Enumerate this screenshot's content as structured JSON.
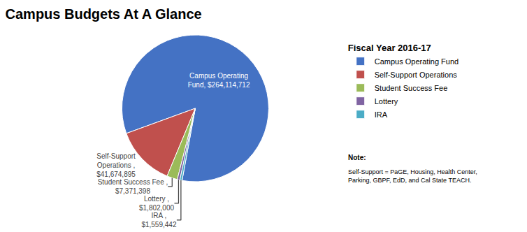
{
  "chart_data": {
    "type": "pie",
    "title": "Campus Budgets At A Glance",
    "categories": [
      "Campus Operating Fund",
      "Self-Support Operations",
      "Student Success Fee",
      "Lottery",
      "IRA"
    ],
    "values": [
      264114712,
      41674895,
      7371398,
      1802000,
      1559442
    ],
    "colors": [
      "#4472C4",
      "#C0504D",
      "#9BBB59",
      "#8064A2",
      "#4BACC6"
    ],
    "data_labels": true,
    "value_labels": [
      "Campus Operating\nFund, $264,114,712",
      "Self-Support\nOperations ,\n$41,674,895",
      "Student Success Fee ,\n$7,371,398",
      "Lottery ,\n$1,802,000",
      "IRA ,\n$1,559,442"
    ],
    "legend": "right",
    "legend_title": "Fiscal Year 2016-17",
    "annotations": [
      "Note:",
      "Self-Support = PaGE, Housing, Health Center, Parking, GBPF, EdD, and Cal State TEACH."
    ]
  }
}
